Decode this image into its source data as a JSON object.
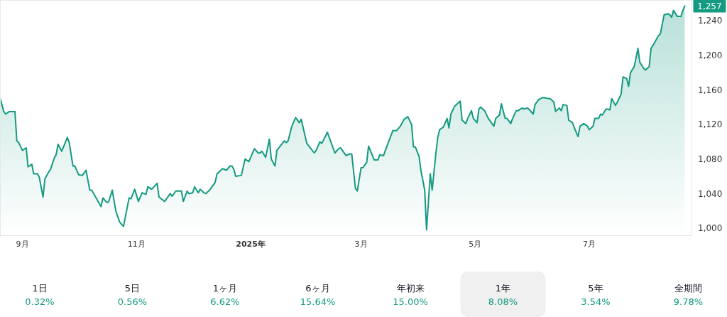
{
  "chart_data": {
    "type": "area",
    "x": [
      "2024-08-20",
      "2024-08-22",
      "2024-08-23",
      "2024-08-25",
      "2024-08-28",
      "2024-08-29",
      "2024-08-30",
      "2024-09-01",
      "2024-09-03",
      "2024-09-04",
      "2024-09-06",
      "2024-09-07",
      "2024-09-09",
      "2024-09-10",
      "2024-09-12",
      "2024-09-13",
      "2024-09-15",
      "2024-09-16",
      "2024-09-18",
      "2024-09-19",
      "2024-09-20",
      "2024-09-22",
      "2024-09-25",
      "2024-09-26",
      "2024-09-28",
      "2024-09-29",
      "2024-10-01",
      "2024-10-03",
      "2024-10-05",
      "2024-10-07",
      "2024-10-08",
      "2024-10-13",
      "2024-10-14",
      "2024-10-16",
      "2024-10-17",
      "2024-10-19",
      "2024-10-21",
      "2024-10-23",
      "2024-10-25",
      "2024-10-28",
      "2024-10-29",
      "2024-10-31",
      "2024-11-02",
      "2024-11-04",
      "2024-11-06",
      "2024-11-07",
      "2024-11-09",
      "2024-11-12",
      "2024-11-13",
      "2024-11-16",
      "2024-11-19",
      "2024-11-20",
      "2024-11-22",
      "2024-11-25",
      "2024-11-26",
      "2024-11-28",
      "2024-11-29",
      "2024-12-01",
      "2024-12-02",
      "2024-12-04",
      "2024-12-05",
      "2024-12-07",
      "2024-12-08",
      "2024-12-10",
      "2024-12-13",
      "2024-12-14",
      "2024-12-17",
      "2024-12-19",
      "2024-12-21",
      "2024-12-22",
      "2024-12-23",
      "2024-12-24",
      "2024-12-27",
      "2024-12-29",
      "2024-12-31",
      "2025-01-03",
      "2025-01-05",
      "2025-01-06",
      "2025-01-07",
      "2025-01-09",
      "2025-01-11",
      "2025-01-12",
      "2025-01-14",
      "2025-01-15",
      "2025-01-19",
      "2025-01-20",
      "2025-01-21",
      "2025-01-23",
      "2025-01-25",
      "2025-01-27",
      "2025-01-28",
      "2025-01-31",
      "2025-02-04",
      "2025-02-05",
      "2025-02-07",
      "2025-02-08",
      "2025-02-11",
      "2025-02-15",
      "2025-02-17",
      "2025-02-18",
      "2025-02-19",
      "2025-02-21",
      "2025-02-23",
      "2025-02-24",
      "2025-02-26",
      "2025-02-27",
      "2025-03-01",
      "2025-03-02",
      "2025-03-04",
      "2025-03-05",
      "2025-03-08",
      "2025-03-10",
      "2025-03-11",
      "2025-03-13",
      "2025-03-15",
      "2025-03-18",
      "2025-03-20",
      "2025-03-22",
      "2025-03-24",
      "2025-03-26",
      "2025-03-28",
      "2025-03-29",
      "2025-03-30",
      "2025-04-01",
      "2025-04-02",
      "2025-04-04",
      "2025-04-05",
      "2025-04-07",
      "2025-04-08",
      "2025-04-10",
      "2025-04-11",
      "2025-04-12",
      "2025-04-14",
      "2025-04-16",
      "2025-04-17",
      "2025-04-18",
      "2025-04-20",
      "2025-04-23",
      "2025-04-24",
      "2025-04-26",
      "2025-04-27",
      "2025-04-29",
      "2025-04-30",
      "2025-05-02",
      "2025-05-03",
      "2025-05-04",
      "2025-05-06",
      "2025-05-08",
      "2025-05-11",
      "2025-05-12",
      "2025-05-14",
      "2025-05-15",
      "2025-05-17",
      "2025-05-18",
      "2025-05-20",
      "2025-05-21",
      "2025-05-23",
      "2025-05-24",
      "2025-05-26",
      "2025-05-27",
      "2025-05-29",
      "2025-05-30",
      "2025-06-01",
      "2025-06-02",
      "2025-06-04",
      "2025-06-06",
      "2025-06-07",
      "2025-06-09",
      "2025-06-10",
      "2025-06-12",
      "2025-06-13",
      "2025-06-15",
      "2025-06-16",
      "2025-06-17",
      "2025-06-19",
      "2025-06-20",
      "2025-06-22",
      "2025-06-23",
      "2025-06-25",
      "2025-06-26",
      "2025-06-28",
      "2025-06-30",
      "2025-07-01",
      "2025-07-03",
      "2025-07-04",
      "2025-07-06",
      "2025-07-07",
      "2025-07-08",
      "2025-07-10",
      "2025-07-12",
      "2025-07-13",
      "2025-07-15",
      "2025-07-16",
      "2025-07-18",
      "2025-07-19",
      "2025-07-21",
      "2025-07-22",
      "2025-07-23",
      "2025-07-25",
      "2025-07-27",
      "2025-07-28",
      "2025-07-30",
      "2025-07-31",
      "2025-08-02",
      "2025-08-03",
      "2025-08-05",
      "2025-08-07",
      "2025-08-08",
      "2025-08-10",
      "2025-08-12",
      "2025-08-13",
      "2025-08-14",
      "2025-08-15",
      "2025-08-17",
      "2025-08-19",
      "2025-08-20",
      "2025-08-21"
    ],
    "series": [
      {
        "color": "#139a80",
        "values": [
          1151,
          1135,
          1132,
          1135,
          1135,
          1101,
          1099,
          1090,
          1093,
          1071,
          1074,
          1063,
          1063,
          1059,
          1036,
          1057,
          1065,
          1068,
          1081,
          1085,
          1097,
          1089,
          1105,
          1099,
          1072,
          1072,
          1062,
          1061,
          1067,
          1044,
          1044,
          1025,
          1035,
          1030,
          1030,
          1044,
          1019,
          1007,
          1002,
          1035,
          1034,
          1045,
          1031,
          1041,
          1039,
          1048,
          1045,
          1052,
          1036,
          1031,
          1040,
          1037,
          1043,
          1043,
          1031,
          1043,
          1040,
          1041,
          1048,
          1041,
          1045,
          1041,
          1040,
          1044,
          1053,
          1063,
          1069,
          1067,
          1072,
          1072,
          1068,
          1060,
          1061,
          1080,
          1077,
          1092,
          1087,
          1087,
          1089,
          1082,
          1103,
          1080,
          1072,
          1090,
          1101,
          1099,
          1101,
          1118,
          1128,
          1122,
          1126,
          1098,
          1087,
          1090,
          1100,
          1098,
          1111,
          1087,
          1092,
          1093,
          1090,
          1084,
          1086,
          1086,
          1046,
          1043,
          1070,
          1070,
          1076,
          1095,
          1079,
          1079,
          1085,
          1084,
          1096,
          1113,
          1113,
          1118,
          1126,
          1129,
          1120,
          1094,
          1094,
          1083,
          1067,
          1044,
          998,
          1063,
          1044,
          1087,
          1105,
          1114,
          1117,
          1127,
          1116,
          1132,
          1141,
          1147,
          1125,
          1121,
          1127,
          1136,
          1127,
          1122,
          1138,
          1140,
          1136,
          1127,
          1118,
          1127,
          1131,
          1144,
          1127,
          1127,
          1121,
          1127,
          1136,
          1136,
          1139,
          1138,
          1139,
          1137,
          1132,
          1143,
          1149,
          1151,
          1151,
          1150,
          1150,
          1146,
          1135,
          1139,
          1136,
          1143,
          1142,
          1125,
          1122,
          1116,
          1106,
          1118,
          1121,
          1118,
          1114,
          1118,
          1127,
          1127,
          1132,
          1131,
          1138,
          1137,
          1150,
          1142,
          1146,
          1155,
          1175,
          1173,
          1164,
          1180,
          1187,
          1208,
          1192,
          1185,
          1183,
          1187,
          1208,
          1215,
          1223,
          1225,
          1247,
          1248,
          1247,
          1244,
          1252,
          1245,
          1245,
          1252,
          1257
        ]
      }
    ],
    "xlim": [
      "2024-08-20",
      "2025-08-25"
    ],
    "ylim": [
      991,
      1264
    ],
    "xticks": [
      {
        "value": "2024-09-01",
        "label": "9月"
      },
      {
        "value": "2024-11-01",
        "label": "11月"
      },
      {
        "value": "2025-01-01",
        "label": "2025年"
      },
      {
        "value": "2025-03-01",
        "label": "3月"
      },
      {
        "value": "2025-05-01",
        "label": "5月"
      },
      {
        "value": "2025-07-01",
        "label": "7月"
      }
    ],
    "yticks": [
      {
        "value": 1000,
        "label": "1,000"
      },
      {
        "value": 1040,
        "label": "1,040"
      },
      {
        "value": 1080,
        "label": "1,080"
      },
      {
        "value": 1120,
        "label": "1,120"
      },
      {
        "value": 1160,
        "label": "1,160"
      },
      {
        "value": 1200,
        "label": "1,200"
      },
      {
        "value": 1240,
        "label": "1,240"
      }
    ],
    "annotations": [
      {
        "text": "1,257",
        "x": "2025-08-21",
        "y": 1257
      },
      "1日",
      "0.32%",
      "5日",
      "0.56%",
      "1ヶ月",
      "6.62%",
      "6ヶ月",
      "15.64%",
      "年初来",
      "15.00%",
      "1年",
      "8.08%",
      "5年",
      "3.54%",
      "全期間",
      "9.78%"
    ]
  }
}
